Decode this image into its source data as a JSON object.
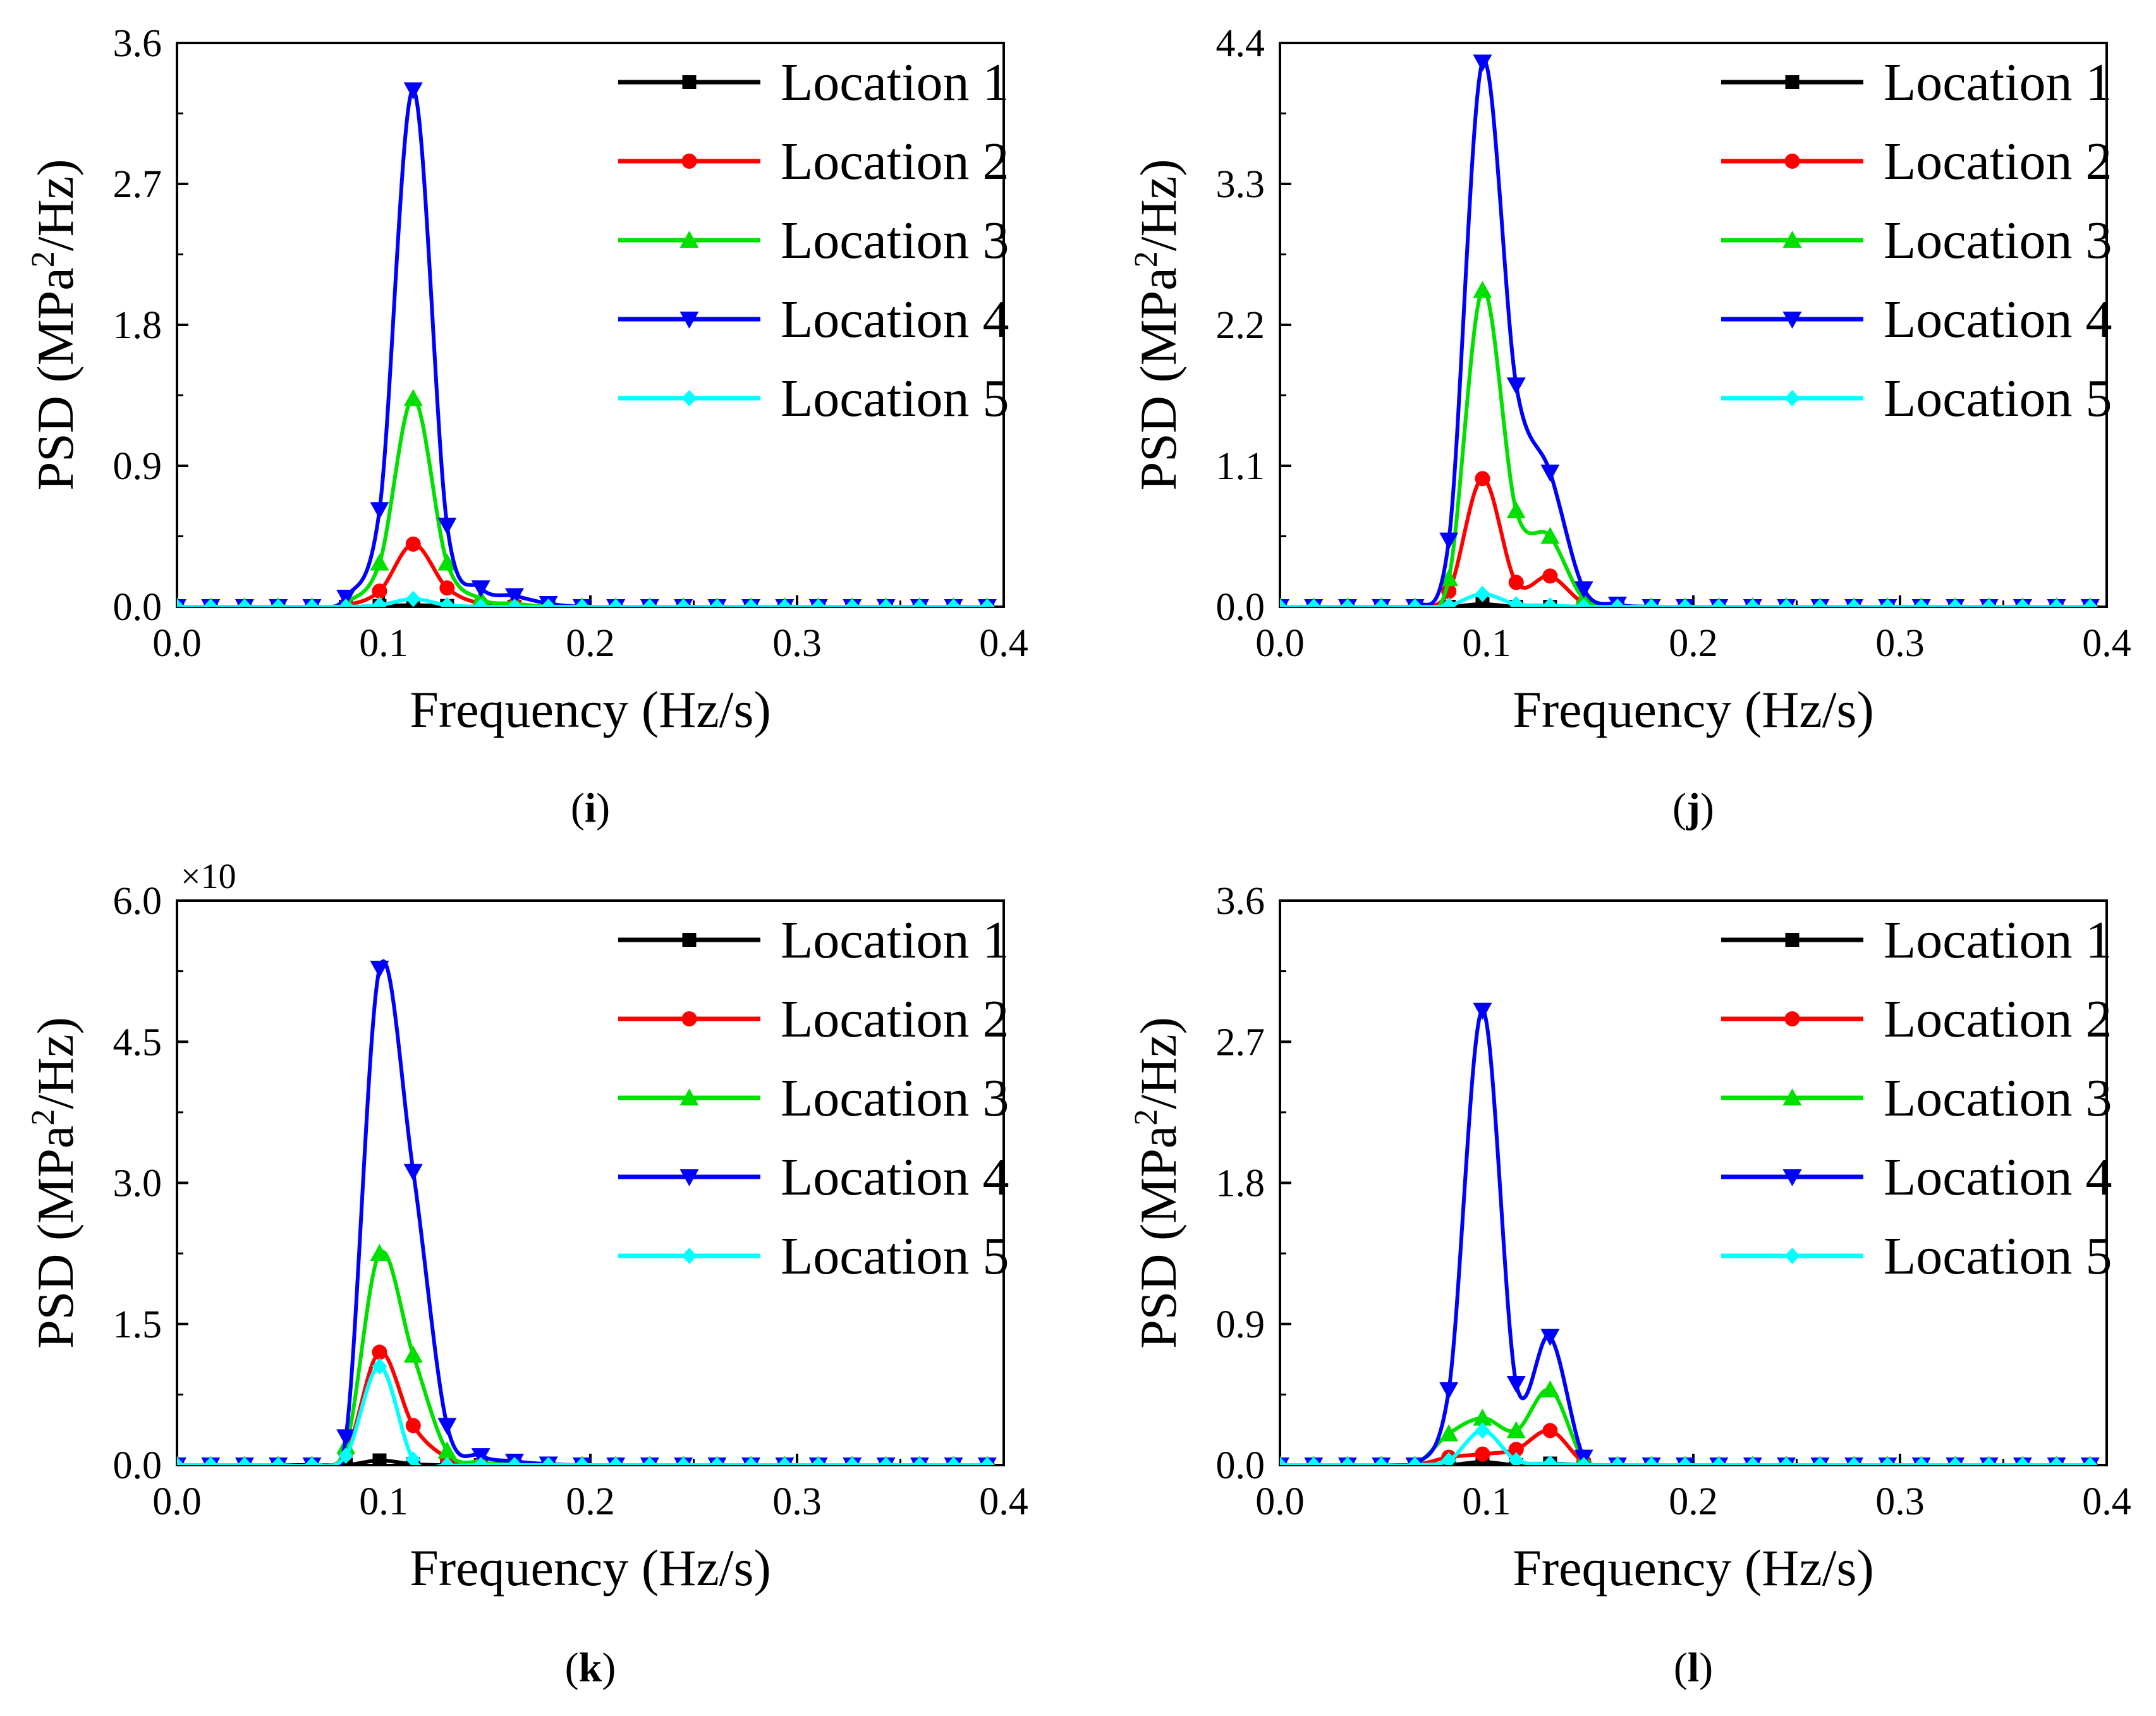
{
  "colors": {
    "location_1": "#000000",
    "location_2": "#ff0000",
    "location_3": "#00e000",
    "location_4": "#0000ff",
    "location_5": "#00ffff"
  },
  "chart_data": [
    {
      "panel": "(i)",
      "panel_letter": "i",
      "type": "line",
      "xlabel": "Frequency (Hz/s)",
      "ylabel_prefix": "PSD (MPa",
      "ylabel_sup": "2",
      "ylabel_suffix": "/Hz)",
      "xlim": [
        0,
        0.4
      ],
      "ylim": [
        0,
        3.6
      ],
      "xticks": [
        "0.0",
        "0.1",
        "0.2",
        "0.3",
        "0.4"
      ],
      "yticks": [
        "0.0",
        "0.9",
        "1.8",
        "2.7",
        "3.6"
      ],
      "multiplier_label": "",
      "legend_position": "top-right",
      "x": [
        0,
        0.0163,
        0.0327,
        0.049,
        0.0653,
        0.0817,
        0.098,
        0.1143,
        0.1307,
        0.147,
        0.1633,
        0.1797,
        0.196,
        0.2123,
        0.2287,
        0.245,
        0.2613,
        0.2777,
        0.294,
        0.3103,
        0.3267,
        0.343,
        0.3593,
        0.3757,
        0.392
      ],
      "series": [
        {
          "name": "Location 1",
          "marker": "square",
          "values": [
            0,
            0,
            0,
            0,
            0,
            0,
            0.005,
            0.01,
            0.005,
            0,
            0,
            0,
            0,
            0,
            0,
            0,
            0,
            0,
            0,
            0,
            0,
            0,
            0,
            0,
            0
          ]
        },
        {
          "name": "Location 2",
          "marker": "circle",
          "values": [
            0,
            0,
            0,
            0,
            0,
            0.01,
            0.1,
            0.4,
            0.12,
            0.02,
            0.01,
            0,
            0,
            0,
            0,
            0,
            0,
            0,
            0,
            0,
            0,
            0,
            0,
            0,
            0
          ]
        },
        {
          "name": "Location 3",
          "marker": "triangle-up",
          "values": [
            0,
            0,
            0,
            0,
            0,
            0.03,
            0.28,
            1.33,
            0.28,
            0.05,
            0.02,
            0,
            0,
            0,
            0,
            0,
            0,
            0,
            0,
            0,
            0,
            0,
            0,
            0,
            0
          ]
        },
        {
          "name": "Location 4",
          "marker": "triangle-down",
          "values": [
            0,
            0,
            0,
            0,
            0,
            0.06,
            0.62,
            3.3,
            0.52,
            0.12,
            0.07,
            0.02,
            0,
            0,
            0,
            0,
            0,
            0,
            0,
            0,
            0,
            0,
            0,
            0,
            0
          ]
        },
        {
          "name": "Location 5",
          "marker": "diamond",
          "values": [
            0,
            0,
            0,
            0,
            0,
            0,
            0.01,
            0.05,
            0.01,
            0,
            0,
            0,
            0,
            0,
            0,
            0,
            0,
            0,
            0,
            0,
            0,
            0,
            0,
            0,
            0
          ]
        }
      ]
    },
    {
      "panel": "(j)",
      "panel_letter": "j",
      "type": "line",
      "xlabel": "Frequency (Hz/s)",
      "ylabel_prefix": "PSD (MPa",
      "ylabel_sup": "2",
      "ylabel_suffix": "/Hz)",
      "xlim": [
        0,
        0.4
      ],
      "ylim": [
        0,
        4.4
      ],
      "xticks": [
        "0.0",
        "0.1",
        "0.2",
        "0.3",
        "0.4"
      ],
      "yticks": [
        "0.0",
        "1.1",
        "2.2",
        "3.3",
        "4.4"
      ],
      "multiplier_label": "",
      "legend_position": "top-right",
      "x": [
        0,
        0.0163,
        0.0327,
        0.049,
        0.0653,
        0.0817,
        0.098,
        0.1143,
        0.1307,
        0.147,
        0.1633,
        0.1797,
        0.196,
        0.2123,
        0.2287,
        0.245,
        0.2613,
        0.2777,
        0.294,
        0.3103,
        0.3267,
        0.343,
        0.3593,
        0.3757,
        0.392
      ],
      "series": [
        {
          "name": "Location 1",
          "marker": "square",
          "values": [
            0,
            0,
            0,
            0,
            0,
            0,
            0.02,
            0,
            0,
            0,
            0,
            0,
            0,
            0,
            0,
            0,
            0,
            0,
            0,
            0,
            0,
            0,
            0,
            0,
            0
          ]
        },
        {
          "name": "Location 2",
          "marker": "circle",
          "values": [
            0,
            0,
            0,
            0,
            0,
            0.12,
            1.0,
            0.19,
            0.24,
            0.03,
            0,
            0,
            0,
            0,
            0,
            0,
            0,
            0,
            0,
            0,
            0,
            0,
            0,
            0,
            0
          ]
        },
        {
          "name": "Location 3",
          "marker": "triangle-up",
          "values": [
            0,
            0,
            0,
            0,
            0,
            0.22,
            2.47,
            0.75,
            0.55,
            0.06,
            0.01,
            0,
            0,
            0,
            0,
            0,
            0,
            0,
            0,
            0,
            0,
            0,
            0,
            0,
            0
          ]
        },
        {
          "name": "Location 4",
          "marker": "triangle-down",
          "values": [
            0,
            0,
            0,
            0,
            0,
            0.52,
            4.25,
            1.73,
            1.05,
            0.14,
            0.02,
            0,
            0,
            0,
            0,
            0,
            0,
            0,
            0,
            0,
            0,
            0,
            0,
            0,
            0
          ]
        },
        {
          "name": "Location 5",
          "marker": "diamond",
          "values": [
            0,
            0,
            0,
            0,
            0,
            0.01,
            0.1,
            0.02,
            0.01,
            0,
            0,
            0,
            0,
            0,
            0,
            0,
            0,
            0,
            0,
            0,
            0,
            0,
            0,
            0,
            0
          ]
        }
      ]
    },
    {
      "panel": "(k)",
      "panel_letter": "k",
      "type": "line",
      "xlabel": "Frequency (Hz/s)",
      "ylabel_prefix": "PSD (MPa",
      "ylabel_sup": "2",
      "ylabel_suffix": "/Hz)",
      "xlim": [
        0,
        0.4
      ],
      "ylim": [
        0,
        6.0
      ],
      "xticks": [
        "0.0",
        "0.1",
        "0.2",
        "0.3",
        "0.4"
      ],
      "yticks": [
        "0.0",
        "1.5",
        "3.0",
        "4.5",
        "6.0"
      ],
      "multiplier_label": "×10",
      "legend_position": "top-right",
      "x": [
        0,
        0.0163,
        0.0327,
        0.049,
        0.0653,
        0.0817,
        0.098,
        0.1143,
        0.1307,
        0.147,
        0.1633,
        0.1797,
        0.196,
        0.2123,
        0.2287,
        0.245,
        0.2613,
        0.2777,
        0.294,
        0.3103,
        0.3267,
        0.343,
        0.3593,
        0.3757,
        0.392
      ],
      "series": [
        {
          "name": "Location 1",
          "marker": "square",
          "values": [
            0,
            0,
            0,
            0,
            0,
            0,
            0.05,
            0.01,
            0,
            0,
            0,
            0,
            0,
            0,
            0,
            0,
            0,
            0,
            0,
            0,
            0,
            0,
            0,
            0,
            0
          ]
        },
        {
          "name": "Location 2",
          "marker": "circle",
          "values": [
            0,
            0,
            0,
            0,
            0,
            0.12,
            1.2,
            0.42,
            0.08,
            0.01,
            0,
            0,
            0,
            0,
            0,
            0,
            0,
            0,
            0,
            0,
            0,
            0,
            0,
            0,
            0
          ]
        },
        {
          "name": "Location 3",
          "marker": "triangle-up",
          "values": [
            0,
            0,
            0,
            0,
            0,
            0.2,
            2.25,
            1.17,
            0.15,
            0.03,
            0.01,
            0,
            0,
            0,
            0,
            0,
            0,
            0,
            0,
            0,
            0,
            0,
            0,
            0,
            0
          ]
        },
        {
          "name": "Location 4",
          "marker": "triangle-down",
          "values": [
            0,
            0,
            0,
            0,
            0,
            0.3,
            5.28,
            3.12,
            0.42,
            0.1,
            0.04,
            0.01,
            0,
            0,
            0,
            0,
            0,
            0,
            0,
            0,
            0,
            0,
            0,
            0,
            0
          ]
        },
        {
          "name": "Location 5",
          "marker": "diamond",
          "values": [
            0,
            0,
            0,
            0,
            0,
            0.1,
            1.05,
            0.06,
            0,
            0,
            0,
            0,
            0,
            0,
            0,
            0,
            0,
            0,
            0,
            0,
            0,
            0,
            0,
            0,
            0
          ]
        }
      ]
    },
    {
      "panel": "(l)",
      "panel_letter": "l",
      "type": "line",
      "xlabel": "Frequency (Hz/s)",
      "ylabel_prefix": "PSD (MPa",
      "ylabel_sup": "2",
      "ylabel_suffix": "/Hz)",
      "xlim": [
        0,
        0.4
      ],
      "ylim": [
        0,
        3.6
      ],
      "xticks": [
        "0.0",
        "0.1",
        "0.2",
        "0.3",
        "0.4"
      ],
      "yticks": [
        "0.0",
        "0.9",
        "1.8",
        "2.7",
        "3.6"
      ],
      "multiplier_label": "",
      "legend_position": "top-right",
      "x": [
        0,
        0.0163,
        0.0327,
        0.049,
        0.0653,
        0.0817,
        0.098,
        0.1143,
        0.1307,
        0.147,
        0.1633,
        0.1797,
        0.196,
        0.2123,
        0.2287,
        0.245,
        0.2613,
        0.2777,
        0.294,
        0.3103,
        0.3267,
        0.343,
        0.3593,
        0.3757,
        0.392
      ],
      "series": [
        {
          "name": "Location 1",
          "marker": "square",
          "values": [
            0,
            0,
            0,
            0,
            0,
            0,
            0.02,
            0,
            0.01,
            0,
            0,
            0,
            0,
            0,
            0,
            0,
            0,
            0,
            0,
            0,
            0,
            0,
            0,
            0,
            0
          ]
        },
        {
          "name": "Location 2",
          "marker": "circle",
          "values": [
            0,
            0,
            0,
            0,
            0,
            0.05,
            0.07,
            0.1,
            0.22,
            0.02,
            0,
            0,
            0,
            0,
            0,
            0,
            0,
            0,
            0,
            0,
            0,
            0,
            0,
            0,
            0
          ]
        },
        {
          "name": "Location 3",
          "marker": "triangle-up",
          "values": [
            0,
            0,
            0,
            0,
            0,
            0.2,
            0.3,
            0.22,
            0.48,
            0.04,
            0,
            0,
            0,
            0,
            0,
            0,
            0,
            0,
            0,
            0,
            0,
            0,
            0,
            0,
            0
          ]
        },
        {
          "name": "Location 4",
          "marker": "triangle-down",
          "values": [
            0,
            0,
            0,
            0,
            0,
            0.48,
            2.9,
            0.52,
            0.82,
            0.05,
            0,
            0,
            0,
            0,
            0,
            0,
            0,
            0,
            0,
            0,
            0,
            0,
            0,
            0,
            0
          ]
        },
        {
          "name": "Location 5",
          "marker": "diamond",
          "values": [
            0,
            0,
            0,
            0,
            0,
            0.03,
            0.22,
            0.03,
            0.01,
            0,
            0,
            0,
            0,
            0,
            0,
            0,
            0,
            0,
            0,
            0,
            0,
            0,
            0,
            0,
            0
          ]
        }
      ]
    }
  ]
}
